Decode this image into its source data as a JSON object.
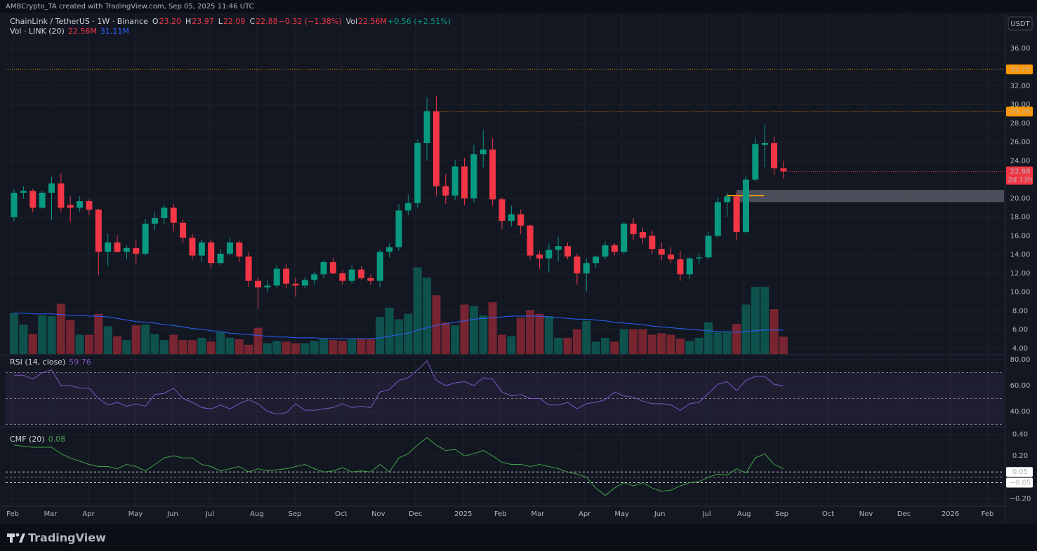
{
  "page": {
    "attribution": "AMBCrypto_TA created with TradingView.com, Sep 05, 2025 11:46 UTC",
    "currency": "USDT",
    "brand": "TradingView"
  },
  "chart_data": [
    {
      "type": "candlestick",
      "title": "ChainLink / TetherUS · 1W · Binance",
      "legend": [
        {
          "text": "O",
          "color": "#d1d4dc"
        },
        {
          "text": "23.20",
          "color": "#f23645"
        },
        {
          "text": "H",
          "color": "#d1d4dc"
        },
        {
          "text": "23.97",
          "color": "#f23645"
        },
        {
          "text": "L",
          "color": "#d1d4dc"
        },
        {
          "text": "22.09",
          "color": "#f23645"
        },
        {
          "text": "C",
          "color": "#d1d4dc"
        },
        {
          "text": "22.88",
          "color": "#f23645"
        },
        {
          "text": "−0.32 (−1.38%)",
          "color": "#f23645"
        },
        {
          "text": "Vol",
          "color": "#d1d4dc"
        },
        {
          "text": "22.56M",
          "color": "#f23645"
        },
        {
          "text": "+0.56 (+2.51%)",
          "color": "#089981"
        }
      ],
      "open": [
        18.0,
        20.6,
        20.8,
        19.0,
        20.6,
        21.6,
        19.3,
        19.0,
        19.7,
        18.8,
        14.3,
        15.3,
        14.3,
        14.7,
        14.1,
        17.3,
        17.9,
        19.0,
        17.4,
        15.8,
        13.9,
        15.3,
        13.1,
        14.1,
        15.3,
        13.8,
        11.2,
        10.5,
        10.7,
        12.5,
        10.9,
        10.7,
        11.3,
        11.9,
        13.2,
        12.0,
        11.2,
        12.4,
        11.5,
        11.2,
        14.3,
        14.8,
        18.7,
        19.5,
        25.9,
        29.3,
        21.3,
        20.3,
        23.4,
        20.0,
        24.7,
        25.2,
        19.9,
        17.6,
        18.3,
        17.1,
        14.0,
        13.6,
        14.5,
        14.9,
        13.8,
        12.0,
        13.1,
        13.8,
        15.0,
        14.3,
        17.3,
        16.4,
        16.0,
        14.6,
        14.0,
        13.5,
        11.9,
        13.6,
        13.7,
        16.0,
        19.6,
        20.2,
        16.4,
        22.0,
        25.7,
        25.9,
        23.2
      ],
      "high": [
        21.0,
        21.3,
        21.0,
        20.8,
        22.3,
        22.7,
        20.2,
        20.2,
        19.9,
        18.9,
        16.2,
        16.0,
        15.0,
        15.5,
        17.8,
        18.5,
        19.3,
        19.4,
        17.8,
        16.2,
        15.6,
        15.6,
        14.6,
        15.8,
        15.5,
        14.3,
        11.6,
        11.3,
        12.9,
        13.0,
        11.5,
        11.6,
        12.2,
        13.4,
        13.7,
        12.3,
        12.9,
        12.8,
        11.9,
        14.6,
        15.2,
        19.4,
        20.4,
        26.3,
        30.8,
        30.9,
        22.6,
        24.1,
        24.3,
        25.7,
        27.3,
        26.4,
        20.1,
        19.2,
        18.8,
        17.2,
        14.4,
        15.2,
        15.9,
        15.3,
        14.1,
        13.6,
        13.9,
        15.4,
        15.2,
        17.5,
        17.9,
        16.9,
        16.6,
        15.3,
        14.8,
        14.4,
        13.8,
        14.1,
        16.4,
        20.1,
        20.6,
        20.6,
        22.4,
        26.5,
        27.9,
        26.6,
        23.97
      ],
      "low": [
        17.6,
        20.0,
        18.5,
        18.9,
        17.7,
        18.6,
        17.5,
        18.6,
        18.2,
        11.8,
        12.8,
        14.2,
        13.5,
        13.1,
        13.9,
        16.6,
        17.2,
        16.5,
        15.2,
        13.5,
        13.2,
        12.5,
        12.9,
        13.9,
        13.2,
        10.6,
        8.2,
        10.0,
        10.4,
        10.4,
        9.5,
        10.4,
        10.8,
        11.5,
        11.9,
        10.8,
        10.9,
        11.3,
        10.8,
        10.5,
        13.7,
        14.4,
        18.2,
        19.0,
        24.0,
        20.3,
        19.4,
        19.8,
        19.3,
        19.6,
        23.3,
        19.2,
        16.7,
        17.0,
        16.2,
        13.5,
        12.5,
        12.1,
        13.3,
        13.5,
        10.8,
        10.1,
        12.6,
        13.5,
        13.9,
        14.1,
        15.6,
        15.2,
        14.1,
        13.4,
        13.1,
        11.2,
        11.4,
        13.0,
        13.5,
        15.8,
        18.0,
        15.5,
        16.2,
        21.8,
        23.3,
        22.5,
        22.09
      ],
      "close": [
        20.6,
        20.8,
        19.0,
        20.6,
        21.6,
        19.0,
        19.0,
        19.7,
        18.8,
        14.3,
        15.3,
        14.3,
        14.7,
        14.1,
        17.3,
        17.9,
        19.0,
        17.4,
        15.8,
        13.9,
        15.3,
        13.1,
        14.1,
        15.3,
        13.8,
        11.2,
        10.5,
        10.7,
        12.5,
        10.9,
        10.7,
        11.3,
        11.9,
        13.2,
        12.0,
        11.2,
        12.4,
        11.5,
        11.2,
        14.3,
        14.8,
        18.7,
        19.5,
        25.9,
        29.3,
        21.3,
        20.3,
        23.4,
        20.0,
        24.7,
        25.2,
        19.9,
        17.6,
        18.3,
        17.1,
        13.9,
        13.6,
        14.5,
        14.9,
        13.8,
        12.0,
        13.1,
        13.8,
        15.0,
        14.3,
        17.3,
        16.2,
        15.8,
        14.6,
        14.0,
        13.5,
        11.9,
        13.6,
        13.7,
        16.0,
        19.6,
        20.2,
        16.4,
        22.0,
        25.8,
        25.9,
        23.2,
        22.88
      ],
      "up_color": "#089981",
      "down_color": "#f23645",
      "xlim": [
        -0.9,
        105.5
      ],
      "xticks": [
        {
          "value": -0.15,
          "label": "Feb"
        },
        {
          "value": 3.89,
          "label": "Mar"
        },
        {
          "value": 7.93,
          "label": "Apr"
        },
        {
          "value": 12.94,
          "label": "May"
        },
        {
          "value": 16.9,
          "label": "Jun"
        },
        {
          "value": 20.87,
          "label": "Jul"
        },
        {
          "value": 25.88,
          "label": "Aug"
        },
        {
          "value": 29.92,
          "label": "Sep"
        },
        {
          "value": 34.85,
          "label": "Oct"
        },
        {
          "value": 38.82,
          "label": "Nov"
        },
        {
          "value": 42.78,
          "label": "Dec"
        },
        {
          "value": 47.87,
          "label": "2025"
        },
        {
          "value": 51.83,
          "label": "Feb"
        },
        {
          "value": 55.8,
          "label": "Mar"
        },
        {
          "value": 60.81,
          "label": "Apr"
        },
        {
          "value": 64.77,
          "label": "May"
        },
        {
          "value": 68.81,
          "label": "Jun"
        },
        {
          "value": 73.82,
          "label": "Jul"
        },
        {
          "value": 77.79,
          "label": "Aug"
        },
        {
          "value": 81.82,
          "label": "Sep"
        },
        {
          "value": 86.76,
          "label": "Oct"
        },
        {
          "value": 90.8,
          "label": "Nov"
        },
        {
          "value": 94.84,
          "label": "Dec"
        },
        {
          "value": 99.78,
          "label": "2026"
        },
        {
          "value": 103.74,
          "label": "Feb"
        }
      ],
      "ylim": [
        3.4,
        39.66
      ],
      "yticks": [
        {
          "value": 36,
          "label": "36.00"
        },
        {
          "value": 32,
          "label": "32.00"
        },
        {
          "value": 30,
          "label": "30.00"
        },
        {
          "value": 28,
          "label": "28.00"
        },
        {
          "value": 26,
          "label": "26.00"
        },
        {
          "value": 24,
          "label": "24.00"
        },
        {
          "value": 20,
          "label": "20.00"
        },
        {
          "value": 18,
          "label": "18.00"
        },
        {
          "value": 16,
          "label": "16.00"
        },
        {
          "value": 14,
          "label": "14.00"
        },
        {
          "value": 12,
          "label": "12.00"
        },
        {
          "value": 10,
          "label": "10.00"
        },
        {
          "value": 8,
          "label": "8.00"
        },
        {
          "value": 6,
          "label": "6.00"
        },
        {
          "value": 4,
          "label": "4.00"
        }
      ],
      "grid": true,
      "levels": [
        {
          "value": 33.75,
          "label": "33.75",
          "color": "#ff9800"
        },
        {
          "value": 29.26,
          "label": "29.26",
          "color": "#ff9800",
          "from": 45
        }
      ],
      "zone": {
        "range": [
          19.6,
          20.9
        ],
        "from": 77,
        "color": "#787b86"
      },
      "marker_line": {
        "value": 20.3,
        "range_x": [
          75.9,
          79.9
        ],
        "color": "#ff9800"
      },
      "last_price": {
        "value": 22.88,
        "label": "22.88",
        "countdown": "2d 13h"
      },
      "volume": {
        "name": "Vol · LINK (20)",
        "ylim": [
          0,
          440
        ],
        "values": [
          53,
          38,
          26,
          50,
          49,
          65,
          44,
          25,
          25,
          52,
          36,
          23,
          18,
          37,
          38,
          26,
          18,
          25,
          18,
          18,
          21,
          16,
          28,
          21,
          19,
          12,
          34,
          14,
          17,
          16,
          14,
          14,
          17,
          20,
          18,
          17,
          19,
          20,
          19,
          48,
          60,
          45,
          52,
          112,
          99,
          76,
          41,
          37,
          64,
          62,
          50,
          67,
          25,
          23,
          47,
          57,
          52,
          49,
          21,
          21,
          32,
          43,
          16,
          21,
          16,
          32,
          32,
          32,
          25,
          27,
          25,
          20,
          17,
          21,
          41,
          28,
          29,
          39,
          64,
          87,
          87,
          58,
          22.56
        ],
        "value_label": "22.56M",
        "sma_values": [
          53,
          53,
          52,
          52,
          52,
          51,
          50,
          50,
          49,
          49,
          48,
          46,
          44,
          42,
          41,
          40,
          38,
          37,
          35,
          33,
          32,
          30,
          29,
          27,
          26,
          25,
          24,
          23,
          22,
          22,
          21,
          21,
          21,
          20,
          20,
          20,
          20,
          20,
          20,
          21,
          23,
          25,
          27,
          31,
          34,
          37,
          39,
          41,
          43,
          45,
          46,
          47,
          48,
          49,
          49,
          49,
          49,
          48,
          47,
          46,
          45,
          45,
          44,
          43,
          41,
          40,
          39,
          38,
          36,
          35,
          34,
          33,
          32,
          31,
          30,
          29,
          29,
          28,
          29,
          30,
          31,
          31,
          31.11
        ],
        "sma_label": "31.11M",
        "sma_color": "#2962ff"
      }
    },
    {
      "type": "line",
      "title": "RSI (14, close)",
      "value_label": "59.76",
      "color": "#7e57c2",
      "values": [
        68,
        68,
        65,
        70,
        72,
        60,
        60,
        58,
        58,
        50,
        45,
        47,
        44,
        46,
        44,
        53,
        54,
        58,
        50,
        47,
        43,
        42,
        45,
        42,
        46,
        49,
        46,
        40,
        38,
        39,
        46,
        41,
        41,
        42,
        43,
        46,
        43,
        44,
        43,
        55,
        57,
        64,
        66,
        72,
        79,
        64,
        60,
        62,
        63,
        60,
        66,
        65,
        55,
        52,
        53,
        50,
        50,
        45,
        45,
        47,
        42,
        46,
        47,
        49,
        55,
        52,
        51,
        48,
        46,
        46,
        45,
        41,
        46,
        47,
        54,
        61,
        63,
        56,
        64,
        67,
        67,
        61,
        59.76
      ],
      "ylim": [
        29.73,
        83.24
      ],
      "yticks": [
        {
          "value": 80,
          "label": "80.00"
        },
        {
          "value": 60,
          "label": "60.00"
        },
        {
          "value": 40,
          "label": "40.00"
        }
      ],
      "levels": [
        {
          "value": 70
        },
        {
          "value": 50
        },
        {
          "value": 30
        }
      ],
      "band_color": "#7e57c2"
    },
    {
      "type": "line",
      "title": "CMF (20)",
      "value_label": "0.08",
      "color": "#43a047",
      "values": [
        0.3,
        0.29,
        0.28,
        0.28,
        0.28,
        0.22,
        0.18,
        0.15,
        0.12,
        0.1,
        0.1,
        0.08,
        0.12,
        0.1,
        0.06,
        0.12,
        0.18,
        0.2,
        0.18,
        0.18,
        0.12,
        0.1,
        0.06,
        0.08,
        0.1,
        0.05,
        0.08,
        0.06,
        0.07,
        0.08,
        0.1,
        0.12,
        0.08,
        0.05,
        0.06,
        0.09,
        0.05,
        0.06,
        0.05,
        0.12,
        0.05,
        0.18,
        0.22,
        0.3,
        0.37,
        0.3,
        0.25,
        0.26,
        0.2,
        0.22,
        0.25,
        0.2,
        0.14,
        0.12,
        0.12,
        0.1,
        0.12,
        0.1,
        0.08,
        0.05,
        0.03,
        0.0,
        -0.1,
        -0.17,
        -0.1,
        -0.05,
        -0.08,
        -0.05,
        -0.1,
        -0.13,
        -0.12,
        -0.08,
        -0.05,
        -0.04,
        0.0,
        0.03,
        0.02,
        0.08,
        0.04,
        0.18,
        0.22,
        0.12,
        0.08
      ],
      "ylim": [
        -0.256,
        0.45
      ],
      "yticks": [
        {
          "value": 0.4,
          "label": "0.40"
        },
        {
          "value": 0.2,
          "label": "0.20"
        },
        {
          "value": -0.2,
          "label": "−0.20"
        }
      ],
      "levels": [
        {
          "value": 0.05,
          "label": "0.05"
        },
        {
          "value": 0
        },
        {
          "value": -0.05,
          "label": "−0.05"
        }
      ]
    }
  ]
}
